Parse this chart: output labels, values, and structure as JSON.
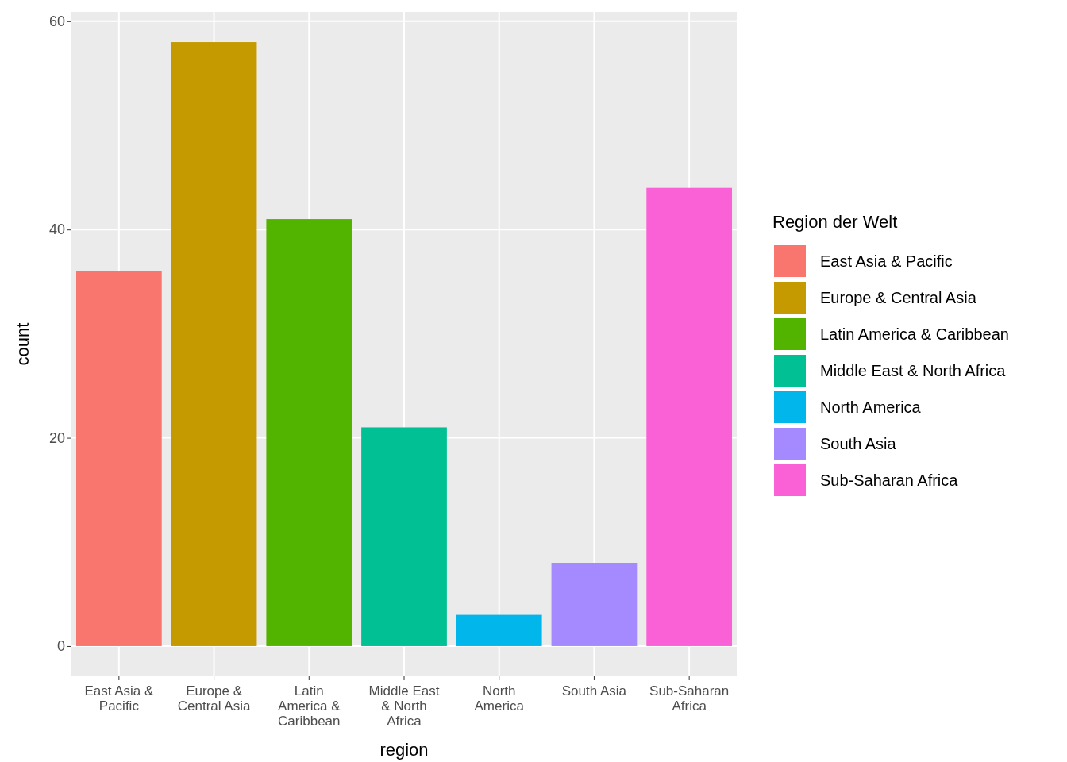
{
  "chart_data": {
    "type": "bar",
    "xlabel": "region",
    "ylabel": "count",
    "legend_title": "Region der Welt",
    "categories": [
      "East Asia & Pacific",
      "Europe & Central Asia",
      "Latin America & Caribbean",
      "Middle East & North Africa",
      "North America",
      "South Asia",
      "Sub-Saharan Africa"
    ],
    "stacked": true,
    "series": [
      {
        "name": "East Asia & Pacific",
        "color": "#f8766d",
        "values": [
          36,
          null,
          null,
          null,
          null,
          null,
          null
        ]
      },
      {
        "name": "Europe & Central Asia",
        "color": "#c49a00",
        "values": [
          null,
          58,
          null,
          null,
          null,
          null,
          null
        ]
      },
      {
        "name": "Latin America & Caribbean",
        "color": "#53b400",
        "values": [
          null,
          null,
          41,
          null,
          null,
          null,
          null
        ]
      },
      {
        "name": "Middle East & North Africa",
        "color": "#00c094",
        "values": [
          null,
          null,
          null,
          21,
          null,
          null,
          null
        ]
      },
      {
        "name": "North America",
        "color": "#00b6eb",
        "values": [
          null,
          null,
          null,
          null,
          3,
          null,
          null
        ]
      },
      {
        "name": "South Asia",
        "color": "#a58aff",
        "values": [
          null,
          null,
          null,
          null,
          null,
          8,
          null
        ]
      },
      {
        "name": "Sub-Saharan Africa",
        "color": "#fb61d7",
        "values": [
          null,
          null,
          null,
          null,
          null,
          null,
          44
        ]
      }
    ],
    "ylim": [
      -2.9,
      60.9
    ],
    "yticks": [
      0,
      20,
      40,
      60
    ],
    "grid": true,
    "legend": "right"
  }
}
